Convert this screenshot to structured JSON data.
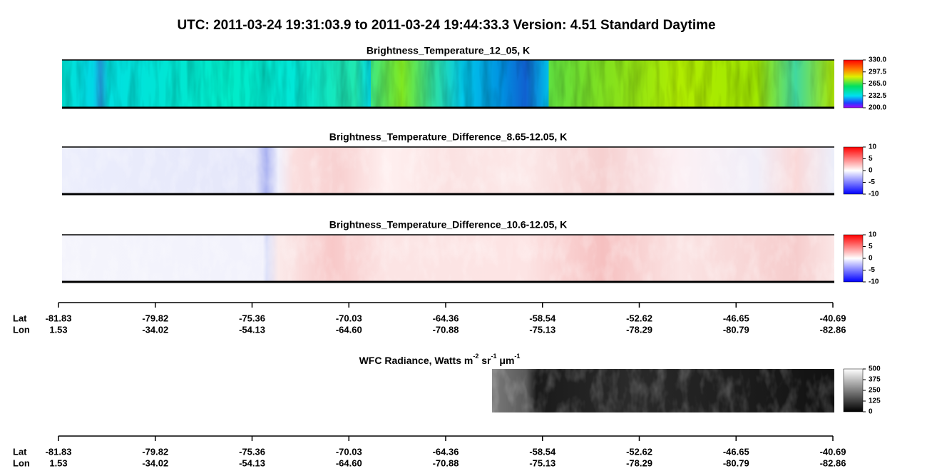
{
  "header": {
    "title": "UTC:  2011-03-24   19:31:03.9  to  2011-03-24   19:44:33.3    Version: 4.51  Standard Daytime"
  },
  "panels": [
    {
      "title": "Brightness_Temperature_12_05, K",
      "colorbar": [
        "330.0",
        "297.5",
        "265.0",
        "232.5",
        "200.0"
      ]
    },
    {
      "title": "Brightness_Temperature_Difference_8.65-12.05, K",
      "colorbar": [
        "10",
        "5",
        "0",
        "-5",
        "-10"
      ]
    },
    {
      "title": "Brightness_Temperature_Difference_10.6-12.05, K",
      "colorbar": [
        "10",
        "5",
        "0",
        "-5",
        "-10"
      ]
    }
  ],
  "wfc": {
    "title": "WFC Radiance, Watts m",
    "sup1": "-2",
    "mid": " sr",
    "sup2": "-1",
    "mu": " μm",
    "sup3": "-1",
    "colorbar": [
      "500",
      "375",
      "250",
      "125",
      "0"
    ]
  },
  "axes": [
    {
      "lat_label": "Lat",
      "lon_label": "Lon",
      "lat": [
        "-81.83",
        "-79.82",
        "-75.36",
        "-70.03",
        "-64.36",
        "-58.54",
        "-52.62",
        "-46.65",
        "-40.69"
      ],
      "lon": [
        "1.53",
        "-34.02",
        "-54.13",
        "-64.60",
        "-70.88",
        "-75.13",
        "-78.29",
        "-80.79",
        "-82.86"
      ]
    },
    {
      "lat_label": "Lat",
      "lon_label": "Lon",
      "lat": [
        "-81.83",
        "-79.82",
        "-75.36",
        "-70.03",
        "-64.36",
        "-58.54",
        "-52.62",
        "-46.65",
        "-40.69"
      ],
      "lon": [
        "1.53",
        "-34.02",
        "-54.13",
        "-64.60",
        "-70.88",
        "-75.13",
        "-78.29",
        "-80.79",
        "-82.86"
      ]
    }
  ]
}
